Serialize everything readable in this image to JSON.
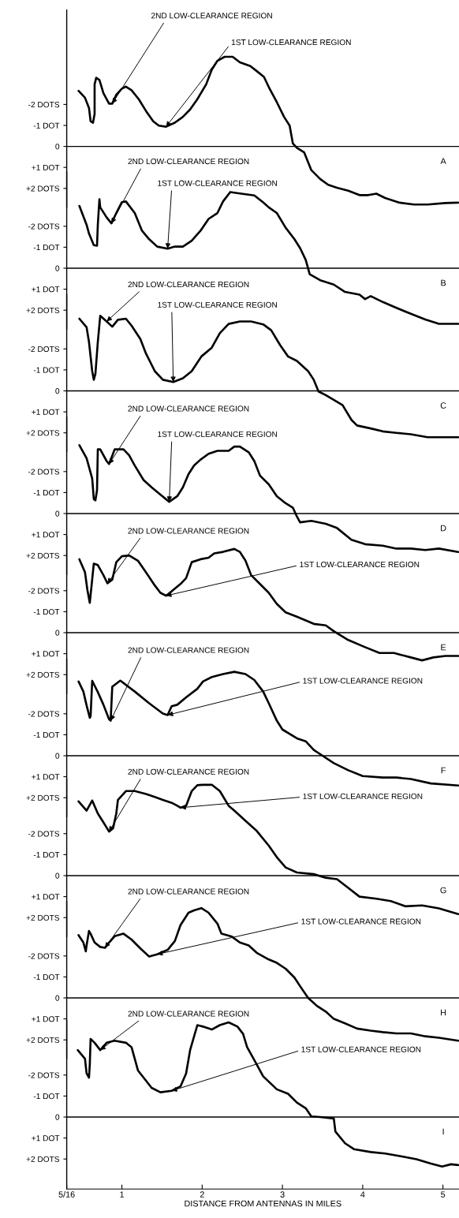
{
  "chart_data": [
    {
      "type": "line",
      "color": "#000000",
      "tick_labels": "y",
      "xlim": [
        0.3125,
        5.2
      ],
      "ylim": [
        2.9,
        -6.5
      ],
      "yticks": [
        {
          "value": -2,
          "label": "-2 DOTS"
        },
        {
          "value": -1,
          "label": "-1 DOT"
        },
        0,
        {
          "value": 1,
          "label": "+1 DOT"
        },
        {
          "value": 2,
          "label": "+2 DOTS"
        }
      ],
      "ref_lines": [
        {
          "axis": "y",
          "value": 0
        }
      ],
      "x": [
        0.46,
        0.54,
        0.59,
        0.61,
        0.64,
        0.66,
        0.66,
        0.68,
        0.72,
        0.77,
        0.84,
        0.88,
        0.93,
        1.0,
        1.05,
        1.12,
        1.21,
        1.3,
        1.39,
        1.46,
        1.55,
        1.66,
        1.76,
        1.85,
        1.94,
        2.05,
        2.12,
        2.19,
        2.28,
        2.38,
        2.47,
        2.6,
        2.68,
        2.77,
        2.84,
        2.93,
        3.02,
        3.09,
        3.13,
        3.18,
        3.27,
        3.36,
        3.47,
        3.57,
        3.68,
        3.82,
        3.96,
        4.07,
        4.17,
        4.28,
        4.46,
        4.64,
        4.81,
        5.03,
        5.19
      ],
      "values": [
        -2.65,
        -2.32,
        -1.83,
        -1.2,
        -1.13,
        -1.55,
        -2.96,
        -3.27,
        -3.17,
        -2.54,
        -2.04,
        -2.04,
        -2.46,
        -2.75,
        -2.85,
        -2.68,
        -2.25,
        -1.69,
        -1.2,
        -0.99,
        -0.94,
        -1.13,
        -1.41,
        -1.76,
        -2.25,
        -2.96,
        -3.66,
        -4.08,
        -4.27,
        -4.27,
        -4.01,
        -3.83,
        -3.59,
        -3.31,
        -2.75,
        -2.11,
        -1.41,
        -0.99,
        -0.14,
        0.07,
        0.28,
        1.13,
        1.55,
        1.83,
        1.97,
        2.11,
        2.32,
        2.32,
        2.25,
        2.46,
        2.68,
        2.77,
        2.77,
        2.7,
        2.68
      ],
      "annotations": [
        {
          "text": "2ND LOW-CLEARANCE REGION",
          "x": 0.88,
          "y": -2.04
        },
        {
          "text": "1ST LOW-CLEARANCE REGION",
          "x": 1.55,
          "y": -0.94
        },
        "A"
      ]
    },
    {
      "type": "line",
      "color": "#000000",
      "tick_labels": "y",
      "xlim": [
        0.3125,
        5.2
      ],
      "ylim": [
        2.9,
        -4.6
      ],
      "yticks": [
        {
          "value": -2,
          "label": "-2 DOTS"
        },
        {
          "value": -1,
          "label": "-1 DOT"
        },
        0,
        {
          "value": 1,
          "label": "+1 DOT"
        },
        {
          "value": 2,
          "label": "+2 DOTS"
        }
      ],
      "ref_lines": [
        {
          "axis": "y",
          "value": 0
        }
      ],
      "x": [
        0.47,
        0.56,
        0.59,
        0.65,
        0.69,
        0.7,
        0.72,
        0.73,
        0.81,
        0.87,
        0.93,
        1.0,
        1.05,
        1.16,
        1.25,
        1.34,
        1.44,
        1.57,
        1.66,
        1.76,
        1.87,
        1.98,
        2.08,
        2.19,
        2.26,
        2.35,
        2.47,
        2.65,
        2.76,
        2.83,
        2.93,
        3.04,
        3.15,
        3.22,
        3.29,
        3.34,
        3.47,
        3.64,
        3.78,
        3.96,
        4.03,
        4.1,
        4.25,
        4.42,
        4.6,
        4.78,
        4.95,
        5.19
      ],
      "values": [
        -2.97,
        -2.07,
        -1.65,
        -1.1,
        -1.07,
        -2.07,
        -3.29,
        -2.9,
        -2.42,
        -2.14,
        -2.63,
        -3.15,
        -3.18,
        -2.63,
        -1.79,
        -1.38,
        -1.03,
        -0.93,
        -1.03,
        -1.03,
        -1.31,
        -1.79,
        -2.35,
        -2.63,
        -3.18,
        -3.63,
        -3.56,
        -3.47,
        -3.14,
        -2.9,
        -2.63,
        -1.93,
        -1.38,
        -0.96,
        -0.4,
        0.29,
        0.57,
        0.78,
        1.13,
        1.26,
        1.47,
        1.33,
        1.61,
        1.89,
        2.17,
        2.44,
        2.65,
        2.65
      ],
      "annotations": [
        {
          "text": "2ND LOW-CLEARANCE REGION",
          "x": 0.87,
          "y": -2.14
        },
        {
          "text": "1ST LOW-CLEARANCE REGION",
          "x": 1.57,
          "y": -0.93
        },
        "B"
      ]
    },
    {
      "type": "line",
      "color": "#000000",
      "tick_labels": "y",
      "xlim": [
        0.3125,
        5.2
      ],
      "ylim": [
        2.9,
        -4.6
      ],
      "yticks": [
        {
          "value": -2,
          "label": "-2 DOTS"
        },
        {
          "value": -1,
          "label": "-1 DOT"
        },
        0,
        {
          "value": 1,
          "label": "+1 DOT"
        },
        {
          "value": 2,
          "label": "+2 DOTS"
        }
      ],
      "ref_lines": [
        {
          "axis": "y",
          "value": 0
        }
      ],
      "x": [
        0.47,
        0.56,
        0.59,
        0.63,
        0.65,
        0.67,
        0.7,
        0.73,
        0.81,
        0.88,
        0.95,
        1.05,
        1.12,
        1.23,
        1.3,
        1.41,
        1.51,
        1.64,
        1.76,
        1.87,
        1.99,
        2.12,
        2.22,
        2.33,
        2.47,
        2.61,
        2.76,
        2.86,
        2.97,
        3.07,
        3.18,
        3.32,
        3.39,
        3.45,
        3.54,
        3.75,
        3.86,
        3.93,
        4.1,
        4.25,
        4.42,
        4.6,
        4.81,
        5.19
      ],
      "values": [
        -3.44,
        -3.03,
        -2.33,
        -0.94,
        -0.53,
        -0.81,
        -2.33,
        -3.58,
        -3.31,
        -3.06,
        -3.39,
        -3.44,
        -3.11,
        -2.47,
        -1.78,
        -0.94,
        -0.53,
        -0.42,
        -0.6,
        -0.94,
        -1.64,
        -2.06,
        -2.75,
        -3.19,
        -3.31,
        -3.31,
        -3.17,
        -2.89,
        -2.19,
        -1.64,
        -1.43,
        -0.94,
        -0.53,
        0.03,
        0.2,
        0.68,
        1.38,
        1.65,
        1.79,
        1.93,
        2.0,
        2.07,
        2.21,
        2.21
      ],
      "annotations": [
        {
          "text": "2ND LOW-CLEARANCE REGION",
          "x": 0.81,
          "y": -3.31
        },
        {
          "text": "1ST LOW-CLEARANCE REGION",
          "x": 1.64,
          "y": -0.42
        },
        "C"
      ]
    },
    {
      "type": "line",
      "color": "#000000",
      "tick_labels": "y",
      "xlim": [
        0.3125,
        5.2
      ],
      "ylim": [
        2.9,
        -4.6
      ],
      "yticks": [
        {
          "value": -2,
          "label": "-2 DOTS"
        },
        {
          "value": -1,
          "label": "-1 DOT"
        },
        0,
        {
          "value": 1,
          "label": "+1 DOT"
        },
        {
          "value": 2,
          "label": "+2 DOTS"
        }
      ],
      "ref_lines": [
        {
          "axis": "y",
          "value": 0
        }
      ],
      "x": [
        0.47,
        0.56,
        0.63,
        0.65,
        0.67,
        0.69,
        0.7,
        0.73,
        0.81,
        0.84,
        0.91,
        1.02,
        1.09,
        1.16,
        1.27,
        1.37,
        1.48,
        1.59,
        1.69,
        1.76,
        1.83,
        1.9,
        1.98,
        2.08,
        2.19,
        2.33,
        2.4,
        2.47,
        2.58,
        2.65,
        2.72,
        2.83,
        2.93,
        3.04,
        3.13,
        3.18,
        3.22,
        3.36,
        3.54,
        3.68,
        3.86,
        4.03,
        4.25,
        4.42,
        4.6,
        4.78,
        4.95,
        5.19
      ],
      "values": [
        -3.26,
        -2.64,
        -1.67,
        -0.69,
        -0.63,
        -1.11,
        -3.06,
        -3.06,
        -2.5,
        -2.36,
        -3.06,
        -3.06,
        -2.78,
        -2.29,
        -1.6,
        -1.25,
        -0.9,
        -0.56,
        -0.83,
        -1.25,
        -1.88,
        -2.29,
        -2.57,
        -2.85,
        -2.99,
        -2.99,
        -3.19,
        -3.19,
        -2.92,
        -2.5,
        -1.81,
        -1.39,
        -0.83,
        -0.49,
        -0.28,
        0.14,
        0.42,
        0.35,
        0.49,
        0.69,
        1.25,
        1.46,
        1.53,
        1.67,
        1.67,
        1.74,
        1.67,
        1.83
      ],
      "annotations": [
        {
          "text": "2ND LOW-CLEARANCE REGION",
          "x": 0.84,
          "y": -2.36
        },
        {
          "text": "1ST LOW-CLEARANCE REGION",
          "x": 1.59,
          "y": -0.56
        },
        "D"
      ]
    },
    {
      "type": "line",
      "color": "#000000",
      "tick_labels": "y",
      "xlim": [
        0.3125,
        5.2
      ],
      "ylim": [
        2.9,
        -4.6
      ],
      "yticks": [
        {
          "value": -2,
          "label": "-2 DOTS"
        },
        {
          "value": -1,
          "label": "-1 DOT"
        },
        0,
        {
          "value": 1,
          "label": "+1 DOT"
        },
        {
          "value": 2,
          "label": "+2 DOTS"
        }
      ],
      "ref_lines": [
        {
          "axis": "y",
          "value": 0
        }
      ],
      "x": [
        0.47,
        0.54,
        0.57,
        0.6,
        0.65,
        0.7,
        0.77,
        0.82,
        0.88,
        0.93,
        1.0,
        1.09,
        1.2,
        1.3,
        1.41,
        1.48,
        1.55,
        1.62,
        1.73,
        1.8,
        1.87,
        1.98,
        2.08,
        2.15,
        2.26,
        2.4,
        2.47,
        2.54,
        2.61,
        2.72,
        2.83,
        2.93,
        3.04,
        3.18,
        3.39,
        3.54,
        3.64,
        3.82,
        4.03,
        4.21,
        4.39,
        4.6,
        4.74,
        4.88,
        5.03,
        5.19
      ],
      "values": [
        -3.5,
        -2.88,
        -2.04,
        -1.42,
        -3.29,
        -3.22,
        -2.74,
        -2.35,
        -2.53,
        -3.36,
        -3.64,
        -3.68,
        -3.43,
        -2.88,
        -2.25,
        -1.9,
        -1.76,
        -1.97,
        -2.32,
        -2.6,
        -3.36,
        -3.5,
        -3.57,
        -3.78,
        -3.85,
        -3.99,
        -3.85,
        -3.43,
        -2.74,
        -2.32,
        -1.9,
        -1.37,
        -0.97,
        -0.76,
        -0.42,
        -0.35,
        -0.07,
        0.35,
        0.69,
        0.97,
        0.97,
        1.18,
        1.32,
        1.18,
        1.11,
        1.11
      ],
      "annotations": [
        {
          "text": "2ND LOW-CLEARANCE REGION",
          "x": 0.82,
          "y": -2.35
        },
        {
          "text": "1ST LOW-CLEARANCE REGION",
          "x": 1.55,
          "y": -1.76
        },
        "E"
      ]
    },
    {
      "type": "line",
      "color": "#000000",
      "tick_labels": "y",
      "xlim": [
        0.3125,
        5.2
      ],
      "ylim": [
        2.9,
        -4.6
      ],
      "yticks": [
        {
          "value": -2,
          "label": "-2 DOTS"
        },
        {
          "value": -1,
          "label": "-1 DOT"
        },
        0,
        {
          "value": 1,
          "label": "+1 DOT"
        },
        {
          "value": 2,
          "label": "+2 DOTS"
        }
      ],
      "ref_lines": [
        {
          "axis": "y",
          "value": 0
        }
      ],
      "x": [
        0.46,
        0.52,
        0.56,
        0.6,
        0.61,
        0.63,
        0.7,
        0.77,
        0.84,
        0.86,
        0.88,
        0.98,
        1.16,
        1.34,
        1.51,
        1.57,
        1.62,
        1.69,
        1.8,
        1.94,
        2.01,
        2.12,
        2.26,
        2.4,
        2.54,
        2.65,
        2.76,
        2.83,
        2.93,
        3.0,
        3.18,
        3.29,
        3.39,
        3.5,
        3.64,
        3.82,
        4.0,
        4.25,
        4.42,
        4.6,
        4.85,
        5.19
      ],
      "values": [
        -3.54,
        -3.06,
        -2.4,
        -1.81,
        -1.88,
        -3.57,
        -3.03,
        -2.43,
        -1.74,
        -1.67,
        -3.29,
        -3.58,
        -3.06,
        -2.5,
        -2.01,
        -1.94,
        -2.36,
        -2.43,
        -2.78,
        -3.19,
        -3.54,
        -3.75,
        -3.89,
        -4.0,
        -3.89,
        -3.61,
        -3.06,
        -2.5,
        -1.67,
        -1.25,
        -0.83,
        -0.69,
        -0.28,
        0.0,
        0.35,
        0.69,
        0.97,
        1.04,
        1.04,
        1.11,
        1.32,
        1.42
      ],
      "annotations": [
        {
          "text": "2ND LOW-CLEARANCE REGION",
          "x": 0.86,
          "y": -1.67
        },
        {
          "text": "1ST LOW-CLEARANCE REGION",
          "x": 1.57,
          "y": -1.94
        },
        "F"
      ]
    },
    {
      "type": "line",
      "color": "#000000",
      "tick_labels": "y",
      "xlim": [
        0.3125,
        5.2
      ],
      "ylim": [
        2.9,
        -4.6
      ],
      "yticks": [
        {
          "value": -2,
          "label": "-2 DOTS"
        },
        {
          "value": -1,
          "label": "-1 DOT"
        },
        0,
        {
          "value": 1,
          "label": "+1 DOT"
        },
        {
          "value": 2,
          "label": "+2 DOTS"
        }
      ],
      "ref_lines": [
        {
          "axis": "y",
          "value": 0
        }
      ],
      "x": [
        0.46,
        0.56,
        0.63,
        0.7,
        0.77,
        0.84,
        0.89,
        0.93,
        0.95,
        1.05,
        1.16,
        1.3,
        1.41,
        1.51,
        1.62,
        1.69,
        1.73,
        1.8,
        1.87,
        1.94,
        2.01,
        2.12,
        2.22,
        2.33,
        2.4,
        2.54,
        2.68,
        2.83,
        2.93,
        3.04,
        3.18,
        3.39,
        3.54,
        3.68,
        3.82,
        3.96,
        4.17,
        4.35,
        4.53,
        4.74,
        4.95,
        5.19
      ],
      "values": [
        -3.54,
        -3.1,
        -3.58,
        -2.96,
        -2.54,
        -2.1,
        -2.26,
        -2.96,
        -3.6,
        -4.03,
        -4.03,
        -3.89,
        -3.75,
        -3.61,
        -3.47,
        -3.33,
        -3.24,
        -3.33,
        -4.03,
        -4.31,
        -4.33,
        -4.33,
        -4.03,
        -3.33,
        -3.1,
        -2.61,
        -2.13,
        -1.43,
        -0.88,
        -0.39,
        -0.15,
        -0.07,
        0.1,
        0.17,
        0.58,
        1.0,
        1.1,
        1.21,
        1.46,
        1.42,
        1.56,
        1.83
      ],
      "annotations": [
        {
          "text": "2ND LOW-CLEARANCE REGION",
          "x": 0.84,
          "y": -2.1
        },
        {
          "text": "1ST LOW-CLEARANCE REGION",
          "x": 1.73,
          "y": -3.24
        },
        "G"
      ]
    },
    {
      "type": "line",
      "color": "#000000",
      "tick_labels": "y",
      "xlim": [
        0.3125,
        5.2
      ],
      "ylim": [
        2.9,
        -4.6
      ],
      "yticks": [
        {
          "value": -2,
          "label": "-2 DOTS"
        },
        {
          "value": -1,
          "label": "-1 DOT"
        },
        0,
        {
          "value": 1,
          "label": "+1 DOT"
        },
        {
          "value": 2,
          "label": "+2 DOTS"
        }
      ],
      "ref_lines": [
        {
          "axis": "y",
          "value": 0
        }
      ],
      "x": [
        0.46,
        0.52,
        0.55,
        0.56,
        0.59,
        0.61,
        0.66,
        0.73,
        0.79,
        0.84,
        0.91,
        1.02,
        1.12,
        1.23,
        1.34,
        1.44,
        1.57,
        1.66,
        1.73,
        1.83,
        1.9,
        1.99,
        2.08,
        2.19,
        2.24,
        2.37,
        2.47,
        2.58,
        2.68,
        2.83,
        2.93,
        3.04,
        3.15,
        3.22,
        3.32,
        3.43,
        3.54,
        3.64,
        3.78,
        3.93,
        4.1,
        4.25,
        4.42,
        4.6,
        4.78,
        4.95,
        5.19
      ],
      "values": [
        -2.99,
        -2.64,
        -2.22,
        -2.5,
        -3.19,
        -3.06,
        -2.64,
        -2.43,
        -2.39,
        -2.64,
        -2.94,
        -3.06,
        -2.78,
        -2.36,
        -1.97,
        -2.08,
        -2.29,
        -2.71,
        -3.47,
        -4.06,
        -4.17,
        -4.28,
        -4.06,
        -3.54,
        -3.06,
        -2.92,
        -2.64,
        -2.5,
        -2.15,
        -1.83,
        -1.67,
        -1.39,
        -0.97,
        -0.56,
        0.0,
        0.38,
        0.65,
        1.0,
        1.21,
        1.46,
        1.56,
        1.63,
        1.69,
        1.69,
        1.83,
        1.9,
        2.04
      ],
      "annotations": [
        {
          "text": "2ND LOW-CLEARANCE REGION",
          "x": 0.79,
          "y": -2.39
        },
        {
          "text": "1ST LOW-CLEARANCE REGION",
          "x": 1.44,
          "y": -2.08
        },
        "H"
      ]
    },
    {
      "type": "line",
      "color": "#000000",
      "xlim": [
        0.3125,
        5.2
      ],
      "ylim": [
        3.43,
        -4.6
      ],
      "xticks": [
        {
          "value": 0.3125,
          "label": "5/16"
        },
        1,
        2,
        3,
        4,
        5
      ],
      "yticks": [
        {
          "value": -2,
          "label": "-2 DOTS"
        },
        {
          "value": -1,
          "label": "-1 DOT"
        },
        0,
        {
          "value": 1,
          "label": "+1 DOT"
        },
        {
          "value": 2,
          "label": "+2 DOTS"
        }
      ],
      "xlabel": "DISTANCE FROM ANTENNAS IN MILES",
      "ref_lines": [
        {
          "axis": "y",
          "value": 0
        }
      ],
      "x": [
        0.45,
        0.54,
        0.56,
        0.59,
        0.6,
        0.61,
        0.66,
        0.73,
        0.81,
        0.91,
        1.05,
        1.12,
        1.2,
        1.27,
        1.37,
        1.48,
        1.62,
        1.73,
        1.8,
        1.85,
        1.94,
        2.01,
        2.12,
        2.22,
        2.33,
        2.44,
        2.51,
        2.56,
        2.65,
        2.76,
        2.93,
        3.07,
        3.18,
        3.29,
        3.36,
        3.47,
        3.64,
        3.66,
        3.78,
        3.89,
        4.1,
        4.28,
        4.49,
        4.67,
        4.85,
        4.99,
        5.1,
        5.19
      ],
      "values": [
        -3.19,
        -2.78,
        -2.08,
        -1.88,
        -2.5,
        -3.72,
        -3.54,
        -3.19,
        -3.54,
        -3.64,
        -3.54,
        -3.33,
        -2.22,
        -1.88,
        -1.39,
        -1.18,
        -1.25,
        -1.46,
        -2.08,
        -3.19,
        -4.38,
        -4.31,
        -4.17,
        -4.38,
        -4.51,
        -4.31,
        -3.96,
        -3.33,
        -2.71,
        -1.94,
        -1.32,
        -1.11,
        -0.69,
        -0.42,
        -0.03,
        0.0,
        0.07,
        0.69,
        1.25,
        1.53,
        1.67,
        1.74,
        1.88,
        2.01,
        2.22,
        2.36,
        2.25,
        2.29
      ],
      "annotations": [
        {
          "text": "2ND LOW-CLEARANCE REGION",
          "x": 0.73,
          "y": -3.19
        },
        {
          "text": "1ST LOW-CLEARANCE REGION",
          "x": 1.62,
          "y": -1.25
        },
        "I"
      ]
    }
  ]
}
